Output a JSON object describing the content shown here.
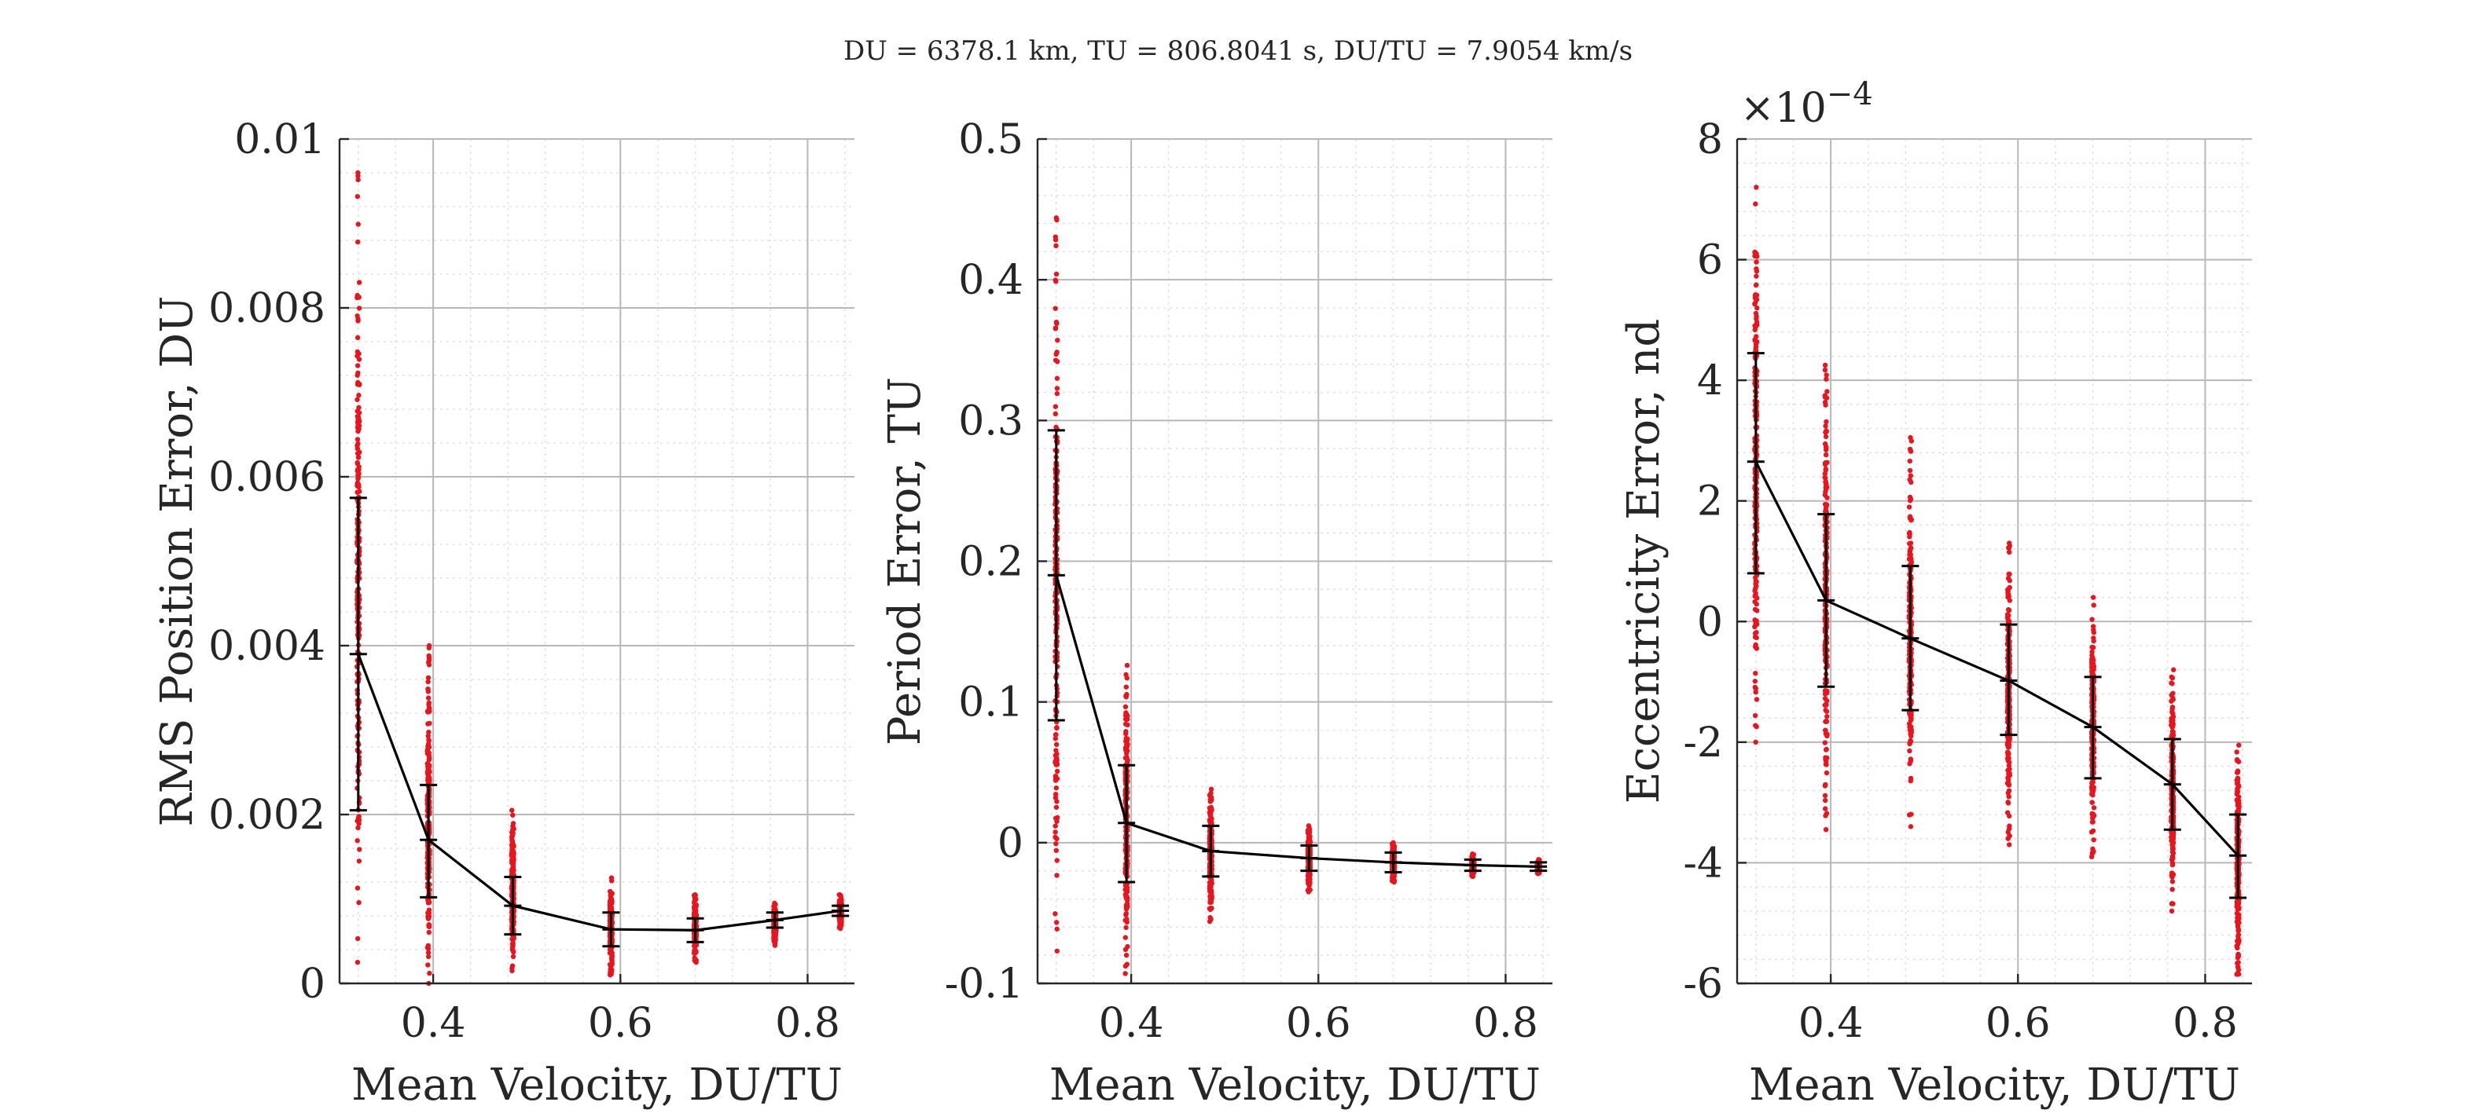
{
  "figure": {
    "title": "DU = 6378.1 km, TU = 806.8041 s, DU/TU = 7.9054 km/s"
  },
  "colors": {
    "scatter": "#e8141e",
    "mean_line": "#000000",
    "error_bar": "#000000",
    "major_grid": "#b8b8b8",
    "minor_grid": "#e2e2e2",
    "axis": "#262626"
  },
  "chart_data": [
    {
      "type": "scatter",
      "id": "rms",
      "title": "",
      "xlabel": "Mean Velocity, DU/TU",
      "ylabel": "RMS Position Error, DU",
      "xlim": [
        0.3,
        0.85
      ],
      "ylim": [
        0,
        0.01
      ],
      "xticks": [
        0.4,
        0.6,
        0.8
      ],
      "xtick_labels": [
        "0.4",
        "0.6",
        "0.8"
      ],
      "yticks": [
        0,
        0.002,
        0.004,
        0.006,
        0.008,
        0.01
      ],
      "ytick_labels": [
        "0",
        "0.002",
        "0.004",
        "0.006",
        "0.008",
        "0.01"
      ],
      "exponent_label": "",
      "grid": true,
      "minor_grid": true,
      "x": [
        0.32,
        0.395,
        0.485,
        0.59,
        0.68,
        0.765,
        0.835
      ],
      "mean": [
        0.0039,
        0.0017,
        0.00092,
        0.00064,
        0.00063,
        0.00075,
        0.00086
      ],
      "err_upper": [
        0.00575,
        0.00235,
        0.00126,
        0.00084,
        0.00077,
        0.00084,
        0.00092
      ],
      "err_lower": [
        0.00205,
        0.00102,
        0.00058,
        0.00044,
        0.00049,
        0.00066,
        0.0008
      ],
      "scatter_range": [
        [
          0.00025,
          0.0096
        ],
        [
          0.0,
          0.004
        ],
        [
          0.00015,
          0.00205
        ],
        [
          0.0001,
          0.00125
        ],
        [
          0.00025,
          0.00105
        ],
        [
          0.00045,
          0.00095
        ],
        [
          0.00065,
          0.00105
        ]
      ]
    },
    {
      "type": "scatter",
      "id": "period",
      "title": "",
      "xlabel": "Mean Velocity, DU/TU",
      "ylabel": "Period Error, TU",
      "xlim": [
        0.3,
        0.85
      ],
      "ylim": [
        -0.1,
        0.5
      ],
      "xticks": [
        0.4,
        0.6,
        0.8
      ],
      "xtick_labels": [
        "0.4",
        "0.6",
        "0.8"
      ],
      "yticks": [
        -0.1,
        0,
        0.1,
        0.2,
        0.3,
        0.4,
        0.5
      ],
      "ytick_labels": [
        "-0.1",
        "0",
        "0.1",
        "0.2",
        "0.3",
        "0.4",
        "0.5"
      ],
      "exponent_label": "",
      "grid": true,
      "minor_grid": true,
      "x": [
        0.32,
        0.395,
        0.485,
        0.59,
        0.68,
        0.765,
        0.835
      ],
      "mean": [
        0.19,
        0.014,
        -0.006,
        -0.011,
        -0.014,
        -0.016,
        -0.017
      ],
      "err_upper": [
        0.293,
        0.055,
        0.012,
        -0.002,
        -0.007,
        -0.012,
        -0.014
      ],
      "err_lower": [
        0.087,
        -0.028,
        -0.024,
        -0.02,
        -0.021,
        -0.02,
        -0.02
      ],
      "scatter_range": [
        [
          -0.077,
          0.444
        ],
        [
          -0.093,
          0.126
        ],
        [
          -0.056,
          0.038
        ],
        [
          -0.035,
          0.012
        ],
        [
          -0.028,
          0.0
        ],
        [
          -0.024,
          -0.008
        ],
        [
          -0.022,
          -0.012
        ]
      ]
    },
    {
      "type": "scatter",
      "id": "ecc",
      "title": "",
      "xlabel": "Mean Velocity, DU/TU",
      "ylabel": "Eccentricity Error, nd",
      "xlim": [
        0.3,
        0.85
      ],
      "ylim": [
        -6,
        8
      ],
      "xticks": [
        0.4,
        0.6,
        0.8
      ],
      "xtick_labels": [
        "0.4",
        "0.6",
        "0.8"
      ],
      "yticks": [
        -6,
        -4,
        -2,
        0,
        2,
        4,
        6,
        8
      ],
      "ytick_labels": [
        "-6",
        "-4",
        "-2",
        "0",
        "2",
        "4",
        "6",
        "8"
      ],
      "exponent_label": "×10",
      "exponent_power": "−4",
      "grid": true,
      "minor_grid": true,
      "x": [
        0.32,
        0.395,
        0.485,
        0.59,
        0.68,
        0.765,
        0.835
      ],
      "mean": [
        2.65,
        0.35,
        -0.28,
        -0.98,
        -1.75,
        -2.7,
        -3.88
      ],
      "err_upper": [
        4.45,
        1.78,
        0.92,
        -0.05,
        -0.92,
        -1.95,
        -3.2
      ],
      "err_lower": [
        0.8,
        -1.08,
        -1.47,
        -1.88,
        -2.6,
        -3.45,
        -4.58
      ],
      "scatter_range": [
        [
          -2.0,
          7.2
        ],
        [
          -3.45,
          4.25
        ],
        [
          -3.4,
          3.05
        ],
        [
          -3.7,
          1.3
        ],
        [
          -3.9,
          0.4
        ],
        [
          -4.8,
          -0.8
        ],
        [
          -5.85,
          -2.05
        ]
      ]
    }
  ]
}
